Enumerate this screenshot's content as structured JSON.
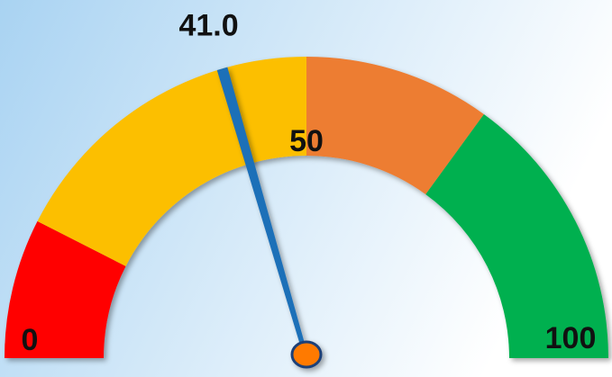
{
  "chart_data": {
    "type": "gauge",
    "value": 41,
    "value_label": "41.0",
    "range": [
      0,
      100
    ],
    "ticks": [
      0,
      50,
      100
    ],
    "bands": [
      {
        "from": 0,
        "to": 15,
        "color": "#ff0000"
      },
      {
        "from": 15,
        "to": 50,
        "color": "#fcbf00"
      },
      {
        "from": 50,
        "to": 70,
        "color": "#ed7d31"
      },
      {
        "from": 70,
        "to": 100,
        "color": "#00b04f"
      }
    ],
    "needle_color": "#1f6fb8",
    "hub_color": "#ff7a00"
  }
}
